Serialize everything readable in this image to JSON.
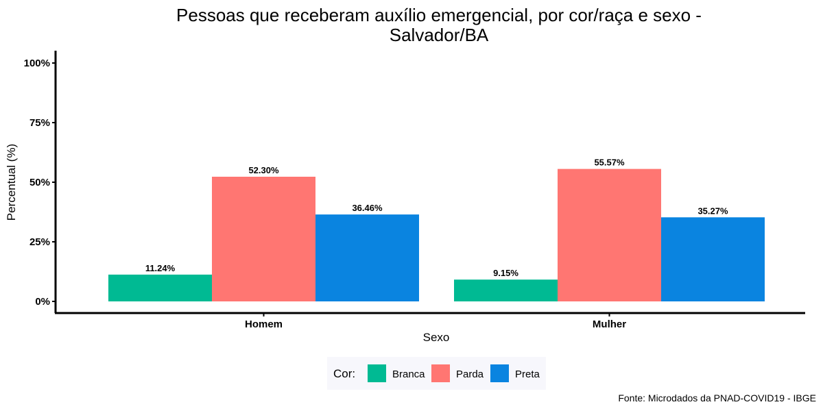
{
  "chart_data": {
    "type": "bar",
    "title_lines": [
      "Pessoas que receberam auxílio emergencial, por cor/raça e sexo -",
      "Salvador/BA"
    ],
    "xlabel": "Sexo",
    "ylabel": "Percentual (%)",
    "categories": [
      "Homem",
      "Mulher"
    ],
    "series": [
      {
        "name": "Branca",
        "color": "#00BA93",
        "values": [
          11.24,
          9.15
        ],
        "labels": [
          "11.24%",
          "9.15%"
        ]
      },
      {
        "name": "Parda",
        "color": "#FF7672",
        "values": [
          52.3,
          55.57
        ],
        "labels": [
          "52.30%",
          "55.57%"
        ]
      },
      {
        "name": "Preta",
        "color": "#0A84E0",
        "values": [
          36.46,
          35.27
        ],
        "labels": [
          "36.46%",
          "35.27%"
        ]
      }
    ],
    "ylim": [
      0,
      100
    ],
    "yticks": [
      0,
      25,
      50,
      75,
      100
    ],
    "ytick_labels": [
      "0%",
      "25%",
      "50%",
      "75%",
      "100%"
    ],
    "grid": false,
    "legend": {
      "title": "Cor:",
      "position": "bottom",
      "background": "#F7F7FC"
    },
    "caption": "Fonte: Microdados da PNAD-COVID19 - IBGE"
  }
}
